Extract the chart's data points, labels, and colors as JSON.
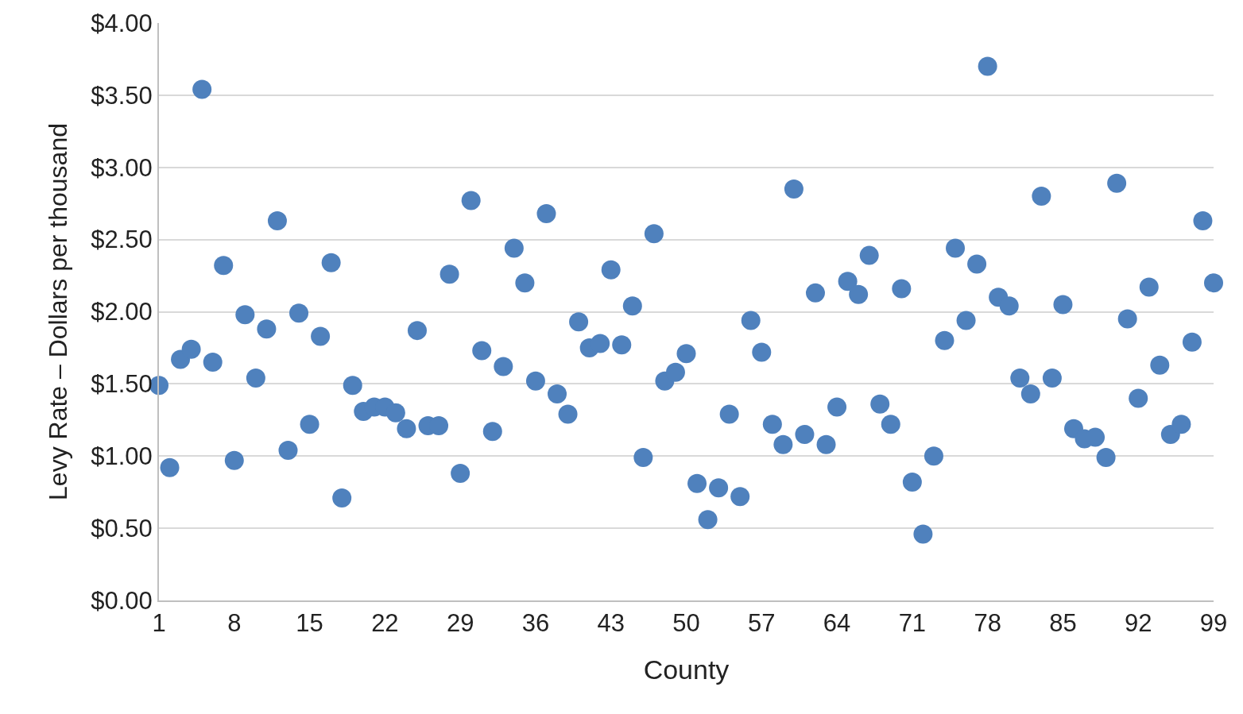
{
  "chart_data": {
    "type": "scatter",
    "xlabel": "County",
    "ylabel": "Levy Rate – Dollars per thousand",
    "x": [
      1,
      2,
      3,
      4,
      5,
      6,
      7,
      8,
      9,
      10,
      11,
      12,
      13,
      14,
      15,
      16,
      17,
      18,
      19,
      20,
      21,
      22,
      23,
      24,
      25,
      26,
      27,
      28,
      29,
      30,
      31,
      32,
      33,
      34,
      35,
      36,
      37,
      38,
      39,
      40,
      41,
      42,
      43,
      44,
      45,
      46,
      47,
      48,
      49,
      50,
      51,
      52,
      53,
      54,
      55,
      56,
      57,
      58,
      59,
      60,
      61,
      62,
      63,
      64,
      65,
      66,
      67,
      68,
      69,
      70,
      71,
      72,
      73,
      74,
      75,
      76,
      77,
      78,
      79,
      80,
      81,
      82,
      83,
      84,
      85,
      86,
      87,
      88,
      89,
      90,
      91,
      92,
      93,
      94,
      95,
      96,
      97,
      98,
      99
    ],
    "series": [
      {
        "color": "#4f81bd",
        "values": [
          1.49,
          0.92,
          1.67,
          1.74,
          3.54,
          1.65,
          2.32,
          0.97,
          1.98,
          1.54,
          1.88,
          2.63,
          1.04,
          1.99,
          1.22,
          1.83,
          2.34,
          0.71,
          1.49,
          1.31,
          1.34,
          1.34,
          1.3,
          1.19,
          1.87,
          1.21,
          1.21,
          2.26,
          0.88,
          2.77,
          1.73,
          1.17,
          1.62,
          2.44,
          2.2,
          1.52,
          2.68,
          1.43,
          1.29,
          1.93,
          1.75,
          1.78,
          2.29,
          1.77,
          2.04,
          0.99,
          2.54,
          1.52,
          1.58,
          1.71,
          0.81,
          0.56,
          0.78,
          1.29,
          0.72,
          1.94,
          1.72,
          1.22,
          1.08,
          2.85,
          1.15,
          2.13,
          1.08,
          1.34,
          2.21,
          2.12,
          2.39,
          1.36,
          1.22,
          2.16,
          0.82,
          0.46,
          1.0,
          1.8,
          2.44,
          1.94,
          2.33,
          3.7,
          2.1,
          2.04,
          1.54,
          1.43,
          2.8,
          1.54,
          2.05,
          1.19,
          1.12,
          1.13,
          0.99,
          2.89,
          1.95,
          1.4,
          2.17,
          1.63,
          1.15,
          1.22,
          1.79,
          2.63,
          2.2
        ]
      }
    ],
    "xlim": [
      1,
      99
    ],
    "xticks": [
      1,
      8,
      15,
      22,
      29,
      36,
      43,
      50,
      57,
      64,
      71,
      78,
      85,
      92,
      99
    ],
    "ylim": [
      0,
      4
    ],
    "yticks": [
      {
        "value": 0,
        "label": "$0.00"
      },
      {
        "value": 0.5,
        "label": "$0.50"
      },
      {
        "value": 1,
        "label": "$1.00"
      },
      {
        "value": 1.5,
        "label": "$1.50"
      },
      {
        "value": 2,
        "label": "$2.00"
      },
      {
        "value": 2.5,
        "label": "$2.50"
      },
      {
        "value": 3,
        "label": "$3.00"
      },
      {
        "value": 3.5,
        "label": "$3.50"
      },
      {
        "value": 4,
        "label": "$4.00"
      }
    ],
    "grid": "y",
    "marker": "circle"
  }
}
